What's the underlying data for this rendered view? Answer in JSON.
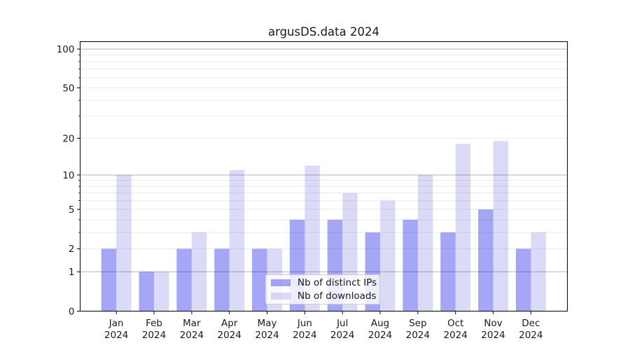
{
  "chart_data": {
    "type": "bar",
    "title": "argusDS.data 2024",
    "categories": [
      "Jan 2024",
      "Feb 2024",
      "Mar 2024",
      "Apr 2024",
      "May 2024",
      "Jun 2024",
      "Jul 2024",
      "Aug 2024",
      "Sep 2024",
      "Oct 2024",
      "Nov 2024",
      "Dec 2024"
    ],
    "series": [
      {
        "name": "Nb of distinct IPs",
        "values": [
          2,
          1,
          2,
          2,
          2,
          4,
          4,
          3,
          4,
          3,
          5,
          2
        ],
        "color": "#0000e6",
        "alpha": 0.35
      },
      {
        "name": "Nb of downloads",
        "values": [
          10,
          1,
          3,
          11,
          2,
          12,
          7,
          6,
          10,
          18,
          19,
          3
        ],
        "color": "#0000c8",
        "alpha": 0.14
      }
    ],
    "xlabel": "",
    "ylabel": "",
    "y_scale": "log10(1+x)",
    "ylim": [
      0,
      115
    ],
    "y_ticks": [
      0,
      1,
      2,
      5,
      10,
      20,
      50,
      100
    ],
    "y_tick_labels": [
      "0",
      "1",
      "2",
      "5",
      "10",
      "20",
      "50",
      "100"
    ],
    "y_minor_ticks": [
      2,
      3,
      4,
      5,
      6,
      7,
      8,
      9,
      20,
      30,
      40,
      50,
      60,
      70,
      80,
      90
    ],
    "y_major_gridlines": [
      1,
      10,
      100
    ],
    "grid": true,
    "legend_position": "lower center",
    "colors": {
      "grid_major": "#b4b4b4",
      "grid_minor": "#e9e9e9",
      "spine": "#000000",
      "text": "#1a1a1a",
      "legend_border": "#cccccc"
    }
  }
}
